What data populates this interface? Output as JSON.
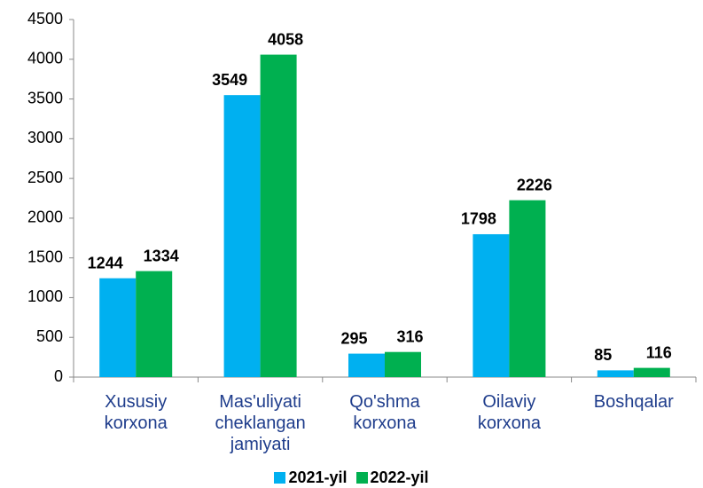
{
  "chart_data": {
    "type": "bar",
    "categories": [
      "Xususiy korxona",
      "Mas'uliyati cheklangan jamiyati",
      "Qo'shma korxona",
      "Oilaviy korxona",
      "Boshqalar"
    ],
    "series": [
      {
        "name": "2021-yil",
        "color": "#00b0f0",
        "values": [
          1244,
          3549,
          295,
          1798,
          85
        ]
      },
      {
        "name": "2022-yil",
        "color": "#00b050",
        "values": [
          1334,
          4058,
          316,
          2226,
          116
        ]
      }
    ],
    "ylim": [
      0,
      4500
    ],
    "yticks": [
      0,
      500,
      1000,
      1500,
      2000,
      2500,
      3000,
      3500,
      4000,
      4500
    ],
    "grid": false,
    "legend": "bottom"
  }
}
